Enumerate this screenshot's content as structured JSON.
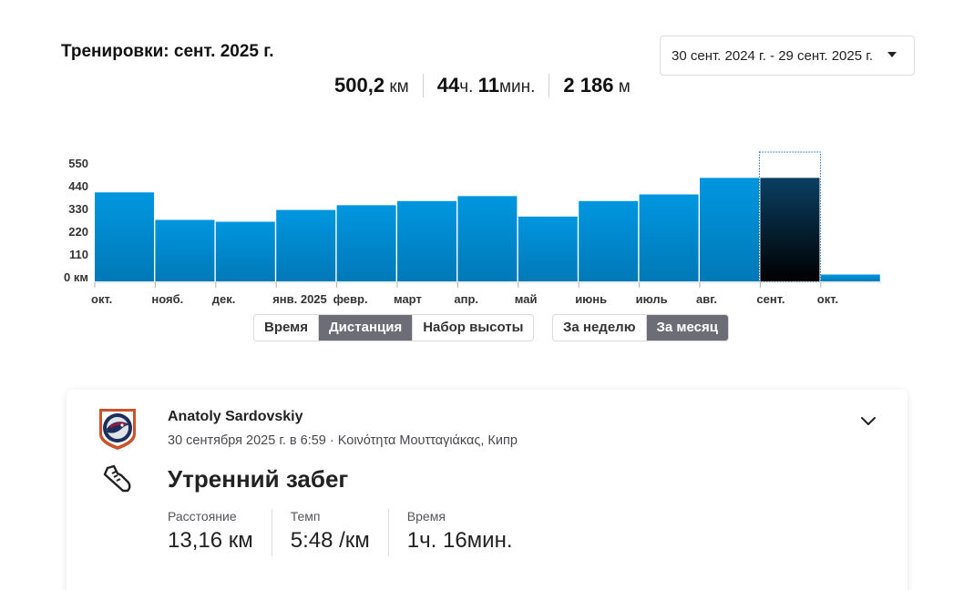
{
  "header": {
    "title": "Тренировки: сент. 2025 г.",
    "date_range": "30 сент. 2024 г. - 29 сент. 2025 г."
  },
  "summary": {
    "distance_value": "500,2",
    "distance_unit": "км",
    "time_hours": "44",
    "time_hours_unit": "ч.",
    "time_minutes": "11",
    "time_minutes_unit": "мин.",
    "elevation_value": "2 186",
    "elevation_unit": "м"
  },
  "chart_data": {
    "type": "bar",
    "categories": [
      "окт.",
      "нояб.",
      "дек.",
      "янв. 2025",
      "февр.",
      "март",
      "апр.",
      "май",
      "июнь",
      "июль",
      "авг.",
      "сент.",
      "окт."
    ],
    "values": [
      430,
      297,
      288,
      345,
      368,
      388,
      412,
      313,
      388,
      420,
      500,
      500,
      33
    ],
    "ylim": [
      0,
      550
    ],
    "yticks": [
      "550",
      "440",
      "330",
      "220",
      "110",
      "0 км"
    ],
    "selected_index": 11,
    "colors": {
      "bar_top": "#0096df",
      "bar_bottom": "#0079b8",
      "selected_top": "#0a3f63",
      "selected_bottom": "#000000"
    }
  },
  "toggles": {
    "metric": [
      "Время",
      "Дистанция",
      "Набор высоты"
    ],
    "metric_active": 1,
    "period": [
      "За неделю",
      "За месяц"
    ],
    "period_active": 1
  },
  "activity": {
    "athlete": "Anatoly Sardovskiy",
    "meta": "30 сентября 2025 г. в 6:59 · Κοινότητα Μουτταγιάκας, Кипр",
    "title": "Утренний забег",
    "metrics": [
      {
        "label": "Расстояние",
        "value": "13,16 км"
      },
      {
        "label": "Темп",
        "value": "5:48 /км"
      },
      {
        "label": "Время",
        "value": "1ч. 16мин."
      }
    ],
    "icons": {
      "avatar": "team-logo-avatar",
      "sport": "running-shoe-icon",
      "expand": "chevron-down-icon"
    }
  }
}
